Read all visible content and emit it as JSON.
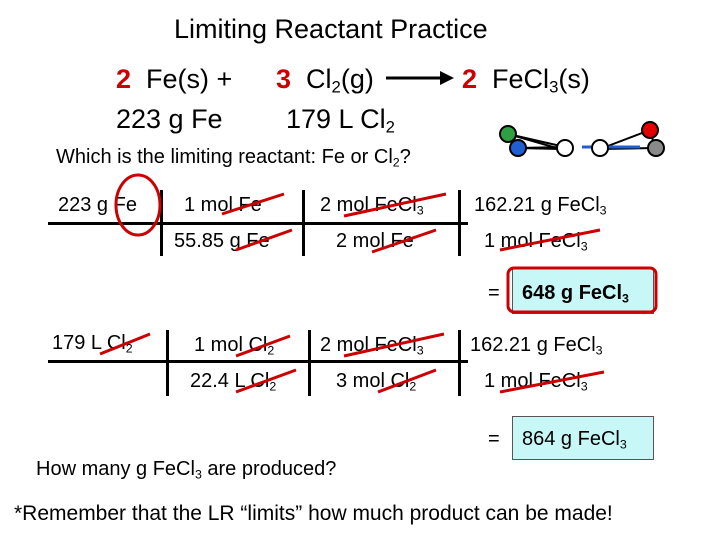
{
  "title": "Limiting Reactant Practice",
  "equation": {
    "coef_fe": "2",
    "fe": "Fe(s) +",
    "coef_cl2": "3",
    "cl2_base": "Cl",
    "cl2_sub": "2",
    "cl2_state": "(g)",
    "coef_fecl3": "2",
    "fecl3_base": "FeCl",
    "fecl3_sub": "3",
    "fecl3_state": "(s)"
  },
  "given": {
    "fe_mass": "223 g Fe",
    "cl2_vol_base": "179 L Cl",
    "cl2_vol_sub": "2"
  },
  "question1": {
    "text": "Which is the limiting reactant: Fe or Cl",
    "sub": "2",
    "tail": "?"
  },
  "calc_fe": {
    "start": "223 g Fe",
    "num1": "1 mol Fe",
    "den1": "55.85 g Fe",
    "num2_base": "2 mol FeCl",
    "num2_sub": "3",
    "den2": "2 mol Fe",
    "num3_base": "162.21 g FeCl",
    "num3_sub": "3",
    "den3_base": "1 mol FeCl",
    "den3_sub": "3",
    "eq": "=",
    "result_base": "648 g FeCl",
    "result_sub": "3"
  },
  "calc_cl2": {
    "start_base": "179 L Cl",
    "start_sub": "2",
    "num1_base": "1 mol Cl",
    "num1_sub": "2",
    "den1_base": "22.4 L Cl",
    "den1_sub": "2",
    "num2_base": "2 mol FeCl",
    "num2_sub": "3",
    "den2_base": "3 mol Cl",
    "den2_sub": "2",
    "num3_base": "162.21 g FeCl",
    "num3_sub": "3",
    "den3_base": "1 mol FeCl",
    "den3_sub": "3",
    "eq": "=",
    "result_base": "864 g FeCl",
    "result_sub": "3"
  },
  "question2": {
    "text": "How many g FeCl",
    "sub": "3",
    "tail": " are produced?"
  },
  "reminder": "*Remember that the LR “limits” how much product can be made!",
  "colors": {
    "red": "#cc0000",
    "box": "#c8f7f7",
    "green": "#2ea043",
    "blue": "#1f5fd1",
    "gray": "#8a8a8a"
  }
}
